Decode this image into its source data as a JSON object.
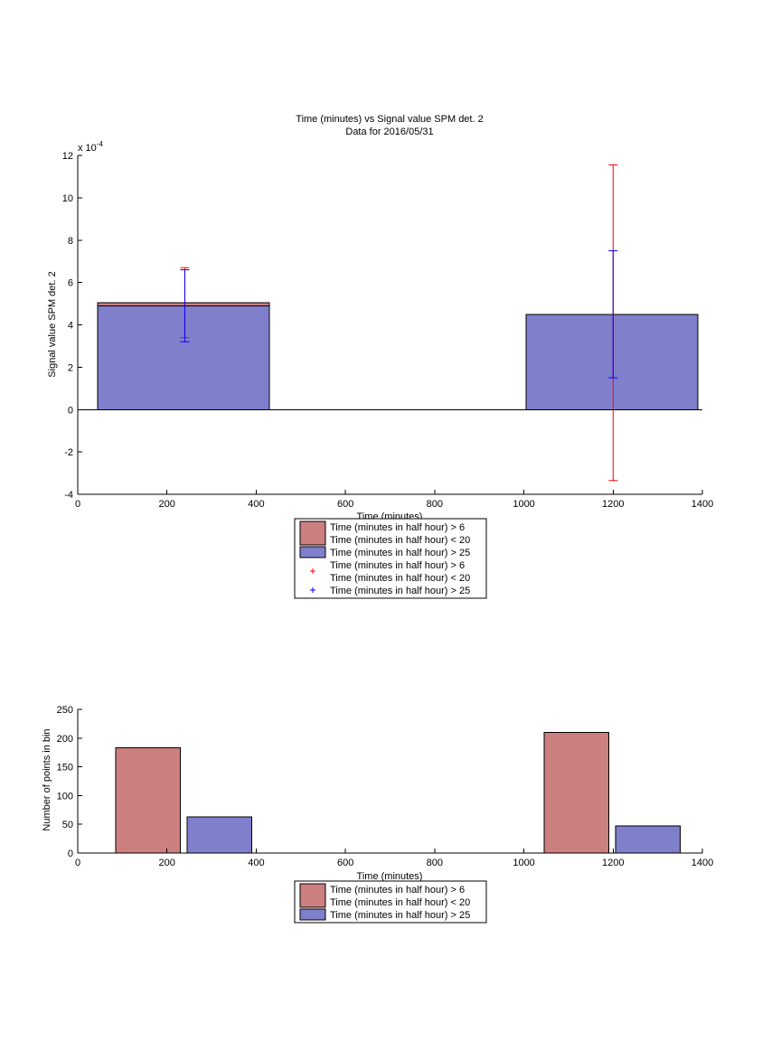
{
  "chart_data": [
    {
      "type": "bar",
      "title": "Time (minutes) vs Signal value SPM det. 2",
      "subtitle": "Data for 2016/05/31",
      "xlabel": "Time (minutes)",
      "ylabel": "Signal value SPM det. 2",
      "y_exponent_label": "x 10",
      "y_exponent_power": "-4",
      "xlim": [
        0,
        1400
      ],
      "ylim": [
        -4,
        12
      ],
      "x_ticks": [
        "0",
        "200",
        "400",
        "600",
        "800",
        "1000",
        "1200",
        "1400"
      ],
      "y_ticks": [
        "-4",
        "-2",
        "0",
        "2",
        "4",
        "6",
        "8",
        "10",
        "12"
      ],
      "grid": false,
      "legend_placement": "bottom-outside",
      "bars": [
        {
          "series": "Time (minutes in half hour) > 6 Time (minutes in half hour) < 20",
          "x_start": 45,
          "x_end": 430,
          "value": 5.05,
          "color": "#cc7f7f"
        },
        {
          "series": "Time (minutes in half hour) > 25",
          "x_start": 45,
          "x_end": 430,
          "value": 4.9,
          "color": "#7f7fcc"
        },
        {
          "series": "Time (minutes in half hour) > 25",
          "x_start": 1005,
          "x_end": 1390,
          "value": 4.5,
          "color": "#7f7fcc"
        }
      ],
      "error_bars": [
        {
          "series": "Time (minutes in half hour) > 6 Time (minutes in half hour) < 20",
          "x": 240,
          "low": 3.4,
          "high": 6.7,
          "color": "#ff0000"
        },
        {
          "series": "Time (minutes in half hour) > 25",
          "x": 240,
          "low": 3.2,
          "high": 6.6,
          "color": "#0000ff"
        },
        {
          "series": "Time (minutes in half hour) > 6 Time (minutes in half hour) < 20",
          "x": 1200,
          "low": -3.35,
          "high": 11.55,
          "color": "#ff0000"
        },
        {
          "series": "Time (minutes in half hour) > 25",
          "x": 1200,
          "low": 1.5,
          "high": 7.5,
          "color": "#0000ff"
        }
      ],
      "legend": [
        {
          "kind": "patch",
          "color": "#cc7f7f",
          "line1": "Time (minutes in half hour) > 6",
          "line2": "Time (minutes in half hour) < 20"
        },
        {
          "kind": "patch",
          "color": "#7f7fcc",
          "line1": "Time (minutes in half hour) > 25",
          "line2": ""
        },
        {
          "kind": "marker",
          "color": "#ff0000",
          "line1": "Time (minutes in half hour) > 6",
          "line2": "Time (minutes in half hour) < 20"
        },
        {
          "kind": "marker",
          "color": "#0000ff",
          "line1": "Time (minutes in half hour) > 25",
          "line2": ""
        }
      ]
    },
    {
      "type": "bar",
      "title": "",
      "xlabel": "Time (minutes)",
      "ylabel": "Number of points in bin",
      "xlim": [
        0,
        1400
      ],
      "ylim": [
        0,
        250
      ],
      "x_ticks": [
        "0",
        "200",
        "400",
        "600",
        "800",
        "1000",
        "1200",
        "1400"
      ],
      "y_ticks": [
        "0",
        "50",
        "100",
        "150",
        "200",
        "250"
      ],
      "grid": false,
      "legend_placement": "bottom-outside",
      "bars": [
        {
          "series": "Time (minutes in half hour) > 6 Time (minutes in half hour) < 20",
          "x_start": 85,
          "x_end": 230,
          "value": 183,
          "color": "#cc7f7f"
        },
        {
          "series": "Time (minutes in half hour) > 25",
          "x_start": 245,
          "x_end": 390,
          "value": 63,
          "color": "#7f7fcc"
        },
        {
          "series": "Time (minutes in half hour) > 6 Time (minutes in half hour) < 20",
          "x_start": 1045,
          "x_end": 1190,
          "value": 210,
          "color": "#cc7f7f"
        },
        {
          "series": "Time (minutes in half hour) > 25",
          "x_start": 1205,
          "x_end": 1350,
          "value": 47,
          "color": "#7f7fcc"
        }
      ],
      "legend": [
        {
          "kind": "patch",
          "color": "#cc7f7f",
          "line1": "Time (minutes in half hour) > 6",
          "line2": "Time (minutes in half hour) < 20"
        },
        {
          "kind": "patch",
          "color": "#7f7fcc",
          "line1": "Time (minutes in half hour) > 25",
          "line2": ""
        }
      ]
    }
  ]
}
